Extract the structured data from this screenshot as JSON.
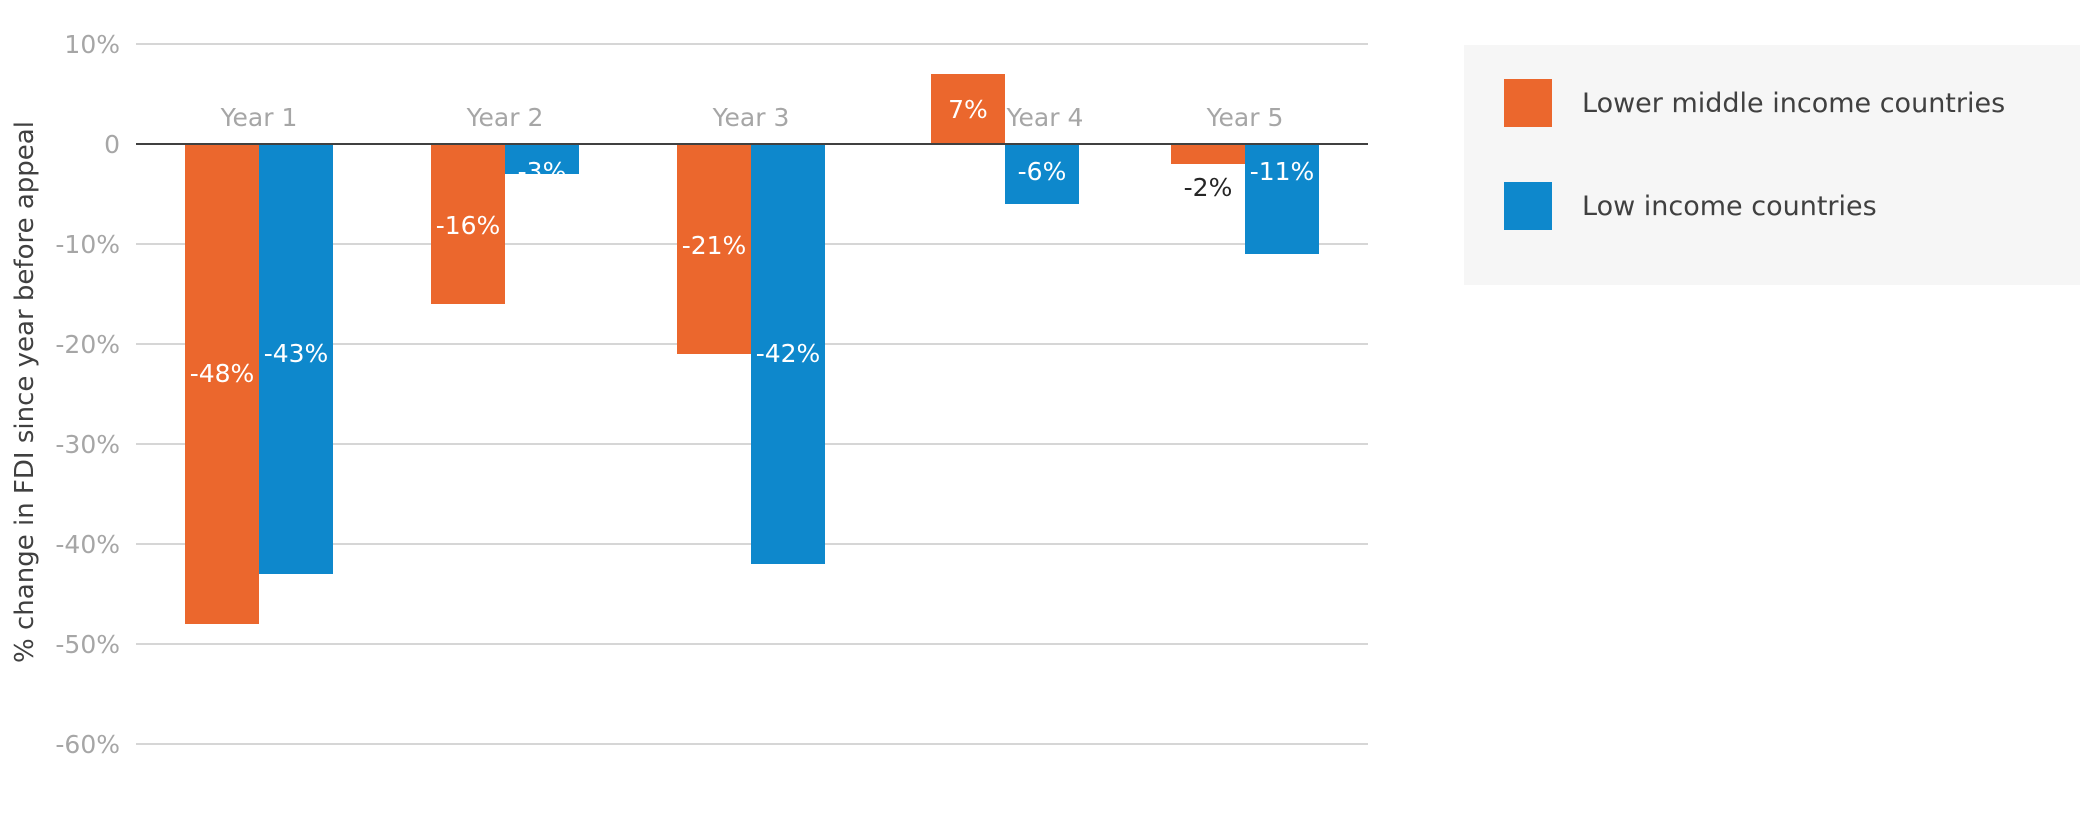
{
  "chart_data": {
    "type": "bar",
    "categories": [
      "Year 1",
      "Year 2",
      "Year 3",
      "Year 4",
      "Year 5"
    ],
    "series": [
      {
        "name": "Lower middle income countries",
        "color": "#eb672d",
        "values": [
          -48,
          -16,
          -21,
          7,
          -2
        ],
        "labels": [
          "-48%",
          "-16%",
          "-21%",
          "7%",
          "-2%"
        ]
      },
      {
        "name": "Low income countries",
        "color": "#0e88cc",
        "values": [
          -43,
          -3,
          -42,
          -6,
          -11
        ],
        "labels": [
          "-43%",
          "-3%",
          "-42%",
          "-6%",
          "-11%"
        ]
      }
    ],
    "ylabel": "% change in  FDI since year before appeal",
    "xlabel": "",
    "title": "",
    "ylim": [
      -60,
      10
    ],
    "yticks": [
      10,
      0,
      -10,
      -20,
      -30,
      -40,
      -50,
      -60
    ],
    "ytick_labels": [
      "10%",
      "0",
      "-10%",
      "-20%",
      "-30%",
      "-40%",
      "-50%",
      "-60%"
    ],
    "grid": true,
    "legend_position": "right"
  }
}
